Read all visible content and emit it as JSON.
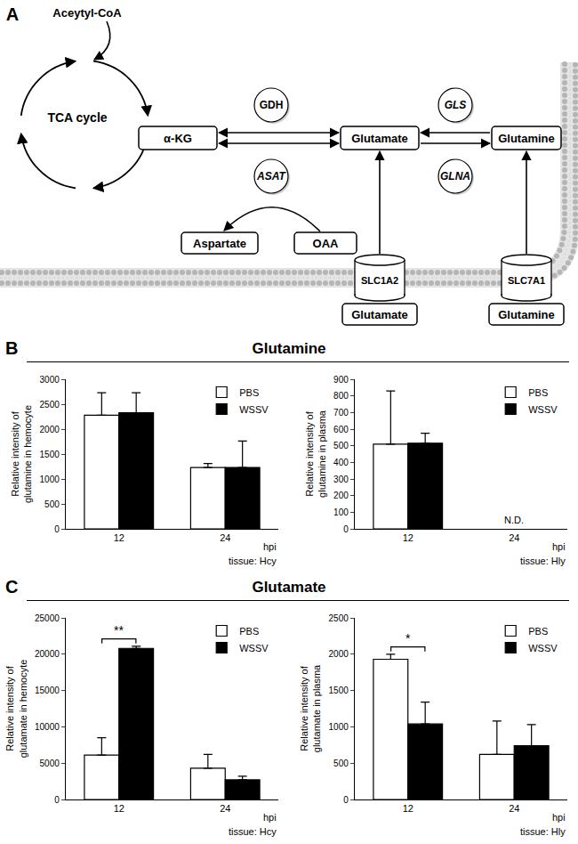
{
  "diagram": {
    "panel_label": "A",
    "acetyl_coa": "Aceytyl-CoA",
    "cycle": "TCA cycle",
    "akg": "α-KG",
    "glutamate": "Glutamate",
    "glutamine": "Glutamine",
    "aspartate": "Aspartate",
    "oaa": "OAA",
    "enzymes": {
      "gdh": "GDH",
      "asat": "ASAT",
      "gls": "GLS",
      "glna": "GLNA"
    },
    "transporters": {
      "glutamate": "SLC1A2",
      "glutamine": "SLC7A1"
    },
    "outside": {
      "glutamate": "Glutamate",
      "glutamine": "Glutamine"
    }
  },
  "sections": [
    {
      "label": "B",
      "title": "Glutamine"
    },
    {
      "label": "C",
      "title": "Glutamate"
    }
  ],
  "chart_data": [
    {
      "type": "bar",
      "y_label": [
        "Relative intensity of",
        "glutamine in hemocyte"
      ],
      "x_label": "hpi",
      "note": "tissue: Hcy",
      "categories": [
        "12",
        "24"
      ],
      "series": [
        {
          "name": "PBS",
          "color": "#ffffff",
          "values": [
            2280,
            1230
          ],
          "errors": [
            450,
            80
          ]
        },
        {
          "name": "WSSV",
          "color": "#000000",
          "values": [
            2330,
            1230
          ],
          "errors": [
            400,
            530
          ]
        }
      ],
      "ylim": [
        0,
        3000
      ],
      "yticks": [
        0,
        500,
        1000,
        1500,
        2000,
        2500,
        3000
      ],
      "legend": "upper right",
      "annotations": []
    },
    {
      "type": "bar",
      "y_label": [
        "Relative intensity of",
        "glutamine in plasma"
      ],
      "x_label": "hpi",
      "note": "tissue: Hly",
      "categories": [
        "12",
        "24"
      ],
      "series": [
        {
          "name": "PBS",
          "color": "#ffffff",
          "values": [
            510,
            null
          ],
          "errors": [
            320,
            null
          ]
        },
        {
          "name": "WSSV",
          "color": "#000000",
          "values": [
            515,
            null
          ],
          "errors": [
            60,
            null
          ]
        }
      ],
      "ylim": [
        0,
        900
      ],
      "yticks": [
        0,
        100,
        200,
        300,
        400,
        500,
        600,
        700,
        800,
        900
      ],
      "legend": "upper right",
      "annotations": [
        {
          "text": "N.D.",
          "x": "24",
          "bracket": false
        }
      ]
    },
    {
      "type": "bar",
      "y_label": [
        "Relative intensity of",
        "glutamate in hemocyte"
      ],
      "x_label": "hpi",
      "note": "tissue: Hcy",
      "categories": [
        "12",
        "24"
      ],
      "series": [
        {
          "name": "PBS",
          "color": "#ffffff",
          "values": [
            6100,
            4300
          ],
          "errors": [
            2400,
            1900
          ]
        },
        {
          "name": "WSSV",
          "color": "#000000",
          "values": [
            20800,
            2700
          ],
          "errors": [
            300,
            500
          ]
        }
      ],
      "ylim": [
        0,
        25000
      ],
      "yticks": [
        0,
        5000,
        10000,
        15000,
        20000,
        25000
      ],
      "legend": "upper right",
      "annotations": [
        {
          "text": "**",
          "x": "12",
          "bracket": true
        }
      ]
    },
    {
      "type": "bar",
      "y_label": [
        "Relative intensity of",
        "glutamate in plasma"
      ],
      "x_label": "hpi",
      "note": "tissue: Hly",
      "categories": [
        "12",
        "24"
      ],
      "series": [
        {
          "name": "PBS",
          "color": "#ffffff",
          "values": [
            1930,
            620
          ],
          "errors": [
            70,
            460
          ]
        },
        {
          "name": "WSSV",
          "color": "#000000",
          "values": [
            1040,
            740
          ],
          "errors": [
            300,
            290
          ]
        }
      ],
      "ylim": [
        0,
        2500
      ],
      "yticks": [
        0,
        500,
        1000,
        1500,
        2000,
        2500
      ],
      "legend": "upper right",
      "annotations": [
        {
          "text": "*",
          "x": "12",
          "bracket": true
        }
      ]
    }
  ]
}
